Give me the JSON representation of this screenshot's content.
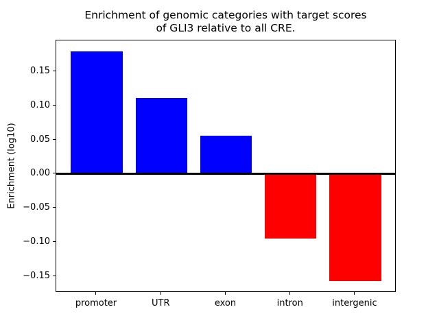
{
  "title": {
    "line1": "Enrichment of genomic categories with target scores",
    "line2": "of GLI3 relative to all CRE."
  },
  "ylabel": "Enrichment (log10)",
  "colors": {
    "positive_bar": "#0000ff",
    "negative_bar": "#ff0000",
    "axis": "#000000",
    "background": "#ffffff"
  },
  "chart_data": {
    "type": "bar",
    "title": "Enrichment of genomic categories with target scores of GLI3 relative to all CRE.",
    "xlabel": "",
    "ylabel": "Enrichment (log10)",
    "categories": [
      "promoter",
      "UTR",
      "exon",
      "intron",
      "intergenic"
    ],
    "values": [
      0.18,
      0.112,
      0.056,
      -0.095,
      -0.157
    ],
    "bar_colors": [
      "#0000ff",
      "#0000ff",
      "#0000ff",
      "#ff0000",
      "#ff0000"
    ],
    "bar_width": 0.8,
    "xlim": [
      -0.626,
      4.637
    ],
    "ylim": [
      -0.174,
      0.196
    ],
    "yticks": [
      {
        "value": 0.15,
        "label": "0.15"
      },
      {
        "value": 0.1,
        "label": "0.10"
      },
      {
        "value": 0.05,
        "label": "0.05"
      },
      {
        "value": 0.0,
        "label": "0.00"
      },
      {
        "value": -0.05,
        "label": "−0.05"
      },
      {
        "value": -0.1,
        "label": "−0.10"
      },
      {
        "value": -0.15,
        "label": "−0.15"
      }
    ],
    "zero_line": true,
    "grid": false,
    "legend": null
  }
}
